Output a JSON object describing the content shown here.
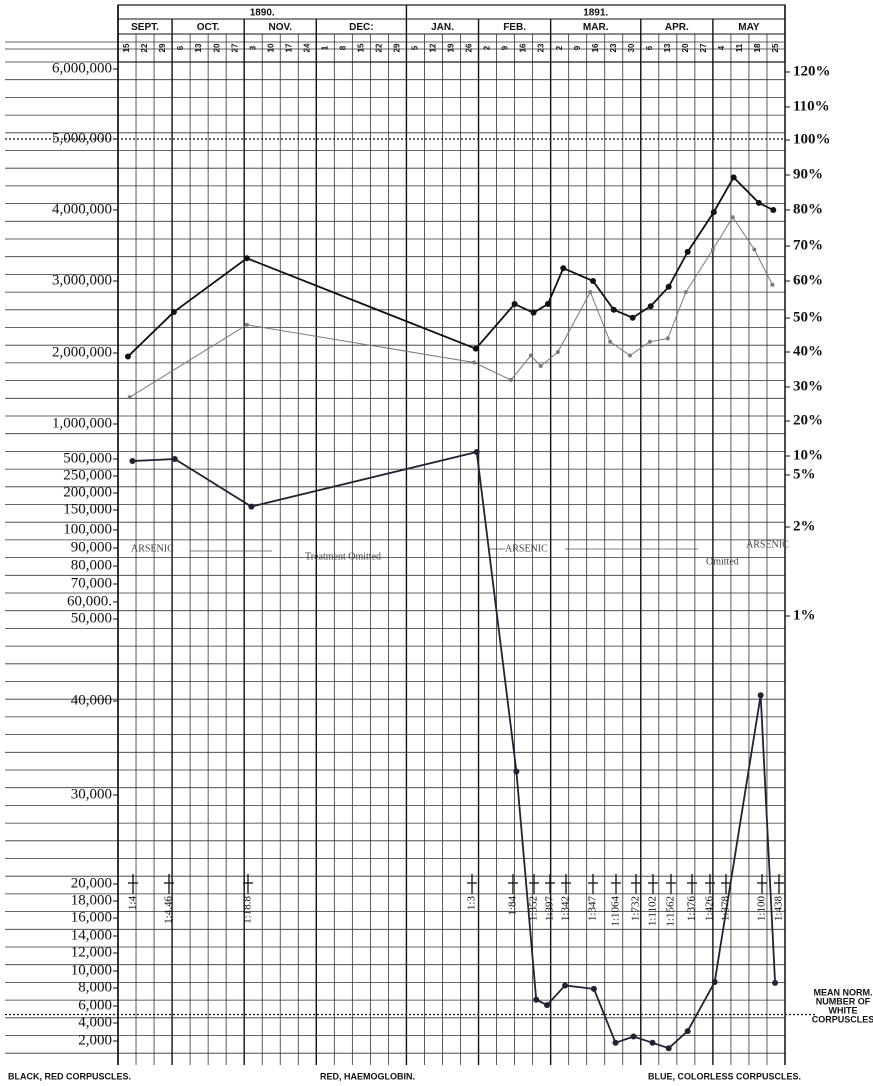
{
  "chart_data": {
    "type": "line",
    "years": [
      {
        "label": "1890.",
        "months": 4
      },
      {
        "label": "1891.",
        "months": 5
      }
    ],
    "months": [
      {
        "name": "SEPT.",
        "days": [
          15,
          22,
          29
        ]
      },
      {
        "name": "OCT.",
        "days": [
          6,
          13,
          20,
          27
        ]
      },
      {
        "name": "NOV.",
        "days": [
          3,
          10,
          17,
          24
        ]
      },
      {
        "name": "DEC:",
        "days": [
          1,
          8,
          15,
          22,
          29
        ]
      },
      {
        "name": "JAN.",
        "days": [
          5,
          12,
          19,
          26
        ]
      },
      {
        "name": "FEB.",
        "days": [
          2,
          9,
          16,
          23
        ]
      },
      {
        "name": "MAR.",
        "days": [
          2,
          9,
          16,
          23,
          30
        ]
      },
      {
        "name": "APR.",
        "days": [
          6,
          13,
          20,
          27
        ]
      },
      {
        "name": "MAY",
        "days": [
          4,
          11,
          18,
          25
        ]
      }
    ],
    "xlim": [
      0,
      37
    ],
    "yticks": [
      {
        "value": 6000000,
        "label": "6,000,000"
      },
      {
        "value": 5000000,
        "label": "5,000,000"
      },
      {
        "value": 4000000,
        "label": "4,000,000"
      },
      {
        "value": 3000000,
        "label": "3,000,000"
      },
      {
        "value": 2000000,
        "label": "2,000,000"
      },
      {
        "value": 1000000,
        "label": "1,000,000"
      },
      {
        "value": 500000,
        "label": "500,000"
      },
      {
        "value": 250000,
        "label": "250,000"
      },
      {
        "value": 200000,
        "label": "200,000"
      },
      {
        "value": 150000,
        "label": "150,000"
      },
      {
        "value": 100000,
        "label": "100,000"
      },
      {
        "value": 90000,
        "label": "90,000"
      },
      {
        "value": 80000,
        "label": "80,000"
      },
      {
        "value": 70000,
        "label": "70,000"
      },
      {
        "value": 60000,
        "label": "60,000."
      },
      {
        "value": 50000,
        "label": "50,000"
      },
      {
        "value": 40000,
        "label": "40,000"
      },
      {
        "value": 30000,
        "label": "30,000"
      },
      {
        "value": 20000,
        "label": "20,000"
      },
      {
        "value": 18000,
        "label": "18,000"
      },
      {
        "value": 16000,
        "label": "16,000"
      },
      {
        "value": 14000,
        "label": "14,000"
      },
      {
        "value": 12000,
        "label": "12,000"
      },
      {
        "value": 10000,
        "label": "10,000"
      },
      {
        "value": 8000,
        "label": "8,000"
      },
      {
        "value": 6000,
        "label": "6,000"
      },
      {
        "value": 4000,
        "label": "4,000"
      },
      {
        "value": 2000,
        "label": "2,000"
      }
    ],
    "y2ticks": [
      {
        "value": 120,
        "label": "120%"
      },
      {
        "value": 110,
        "label": "110%"
      },
      {
        "value": 100,
        "label": "100%"
      },
      {
        "value": 90,
        "label": "90%"
      },
      {
        "value": 80,
        "label": "80%"
      },
      {
        "value": 70,
        "label": "70%"
      },
      {
        "value": 60,
        "label": "60%"
      },
      {
        "value": 50,
        "label": "50%"
      },
      {
        "value": 40,
        "label": "40%"
      },
      {
        "value": 30,
        "label": "30%"
      },
      {
        "value": 20,
        "label": "20%"
      },
      {
        "value": 10,
        "label": "10%"
      },
      {
        "value": 5,
        "label": "5%"
      },
      {
        "value": 2,
        "label": "2%"
      },
      {
        "value": 1,
        "label": "1%"
      }
    ],
    "reference_lines": [
      5000000,
      5000
    ],
    "series": [
      {
        "name": "BLACK, RED CORPUSCLES.",
        "color": "#111111",
        "axis": "y",
        "x": [
          0.55,
          3.1,
          7.15,
          19.85,
          22.0,
          23.05,
          23.85,
          24.7,
          26.35,
          27.5,
          28.55,
          29.55,
          30.55,
          31.6,
          33.05,
          34.15,
          35.55,
          36.35
        ],
        "values": [
          1950000,
          2570000,
          3320000,
          2060000,
          2680000,
          2560000,
          2680000,
          3180000,
          3000000,
          2600000,
          2490000,
          2650000,
          2920000,
          3410000,
          3970000,
          4460000,
          4100000,
          4000000
        ]
      },
      {
        "name": "RED, HAEMOGLOBIN.",
        "color": "#7a7a7a",
        "axis": "y2",
        "x": [
          0.65,
          7.15,
          19.75,
          21.8,
          22.9,
          23.45,
          24.4,
          26.2,
          27.3,
          28.4,
          29.5,
          30.5,
          31.5,
          33.0,
          34.1,
          35.3,
          36.3
        ],
        "values": [
          27,
          48,
          37,
          32,
          39,
          36,
          40,
          57,
          43,
          39,
          43,
          44,
          57,
          69,
          78,
          69,
          59
        ]
      },
      {
        "name": "BLUE, COLORLESS CORPUSCLES.",
        "color": "#222233",
        "axis": "y",
        "x": [
          0.8,
          3.15,
          7.4,
          19.9,
          22.1,
          23.2,
          23.8,
          24.8,
          26.4,
          27.6,
          28.6,
          29.65,
          30.55,
          31.6,
          33.1,
          35.65,
          36.45
        ],
        "values": [
          470000,
          500000,
          160000,
          600000,
          32500,
          6700,
          6100,
          8300,
          7900,
          1800,
          2500,
          1800,
          1200,
          3100,
          8700,
          40700,
          8600
        ]
      }
    ],
    "ratios": [
      "1:4",
      "1:4.46",
      "1:18.8",
      "1:3",
      "1:84",
      "1:352",
      "1:397",
      "1:342",
      "1:347",
      "1:1064",
      "1:732",
      "1:1102",
      "1:1562",
      "1:376",
      "1:426",
      "1:378",
      "1:100",
      "1:438"
    ],
    "annotations": [
      "ARSENIC",
      "Treatment Omitted",
      "ARSENIC",
      "Omitted",
      "ARSENIC"
    ],
    "note": [
      "MEAN NORM.",
      "NUMBER OF",
      "WHITE",
      "CORPUSCLES"
    ]
  }
}
